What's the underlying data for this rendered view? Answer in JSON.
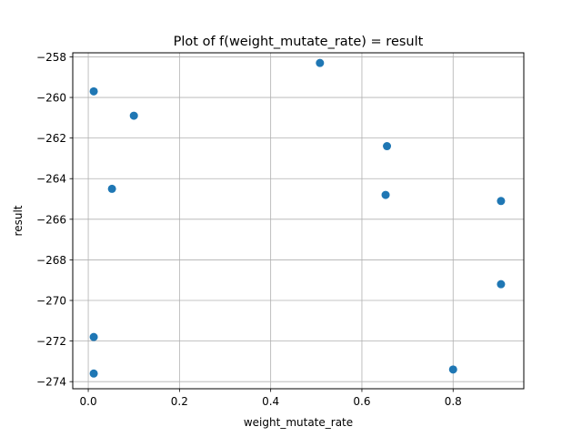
{
  "chart_data": {
    "type": "scatter",
    "title": "Plot of f(weight_mutate_rate) = result",
    "xlabel": "weight_mutate_rate",
    "ylabel": "result",
    "xlim": [
      -0.034,
      0.955
    ],
    "ylim": [
      -274.35,
      -257.8
    ],
    "xticks": [
      0.0,
      0.2,
      0.4,
      0.6,
      0.8
    ],
    "xtick_labels": [
      "0.0",
      "0.2",
      "0.4",
      "0.6",
      "0.8"
    ],
    "yticks": [
      -274,
      -272,
      -270,
      -268,
      -266,
      -264,
      -262,
      -260,
      -258
    ],
    "ytick_labels": [
      "−274",
      "−272",
      "−270",
      "−268",
      "−266",
      "−264",
      "−262",
      "−260",
      "−258"
    ],
    "grid": true,
    "marker_color": "#1f77b4",
    "points": [
      {
        "x": 0.012,
        "y": -259.7
      },
      {
        "x": 0.1,
        "y": -260.9
      },
      {
        "x": 0.052,
        "y": -264.5
      },
      {
        "x": 0.012,
        "y": -271.8
      },
      {
        "x": 0.012,
        "y": -273.6
      },
      {
        "x": 0.508,
        "y": -258.3
      },
      {
        "x": 0.655,
        "y": -262.4
      },
      {
        "x": 0.652,
        "y": -264.8
      },
      {
        "x": 0.905,
        "y": -265.1
      },
      {
        "x": 0.905,
        "y": -269.2
      },
      {
        "x": 0.8,
        "y": -273.4
      }
    ]
  }
}
